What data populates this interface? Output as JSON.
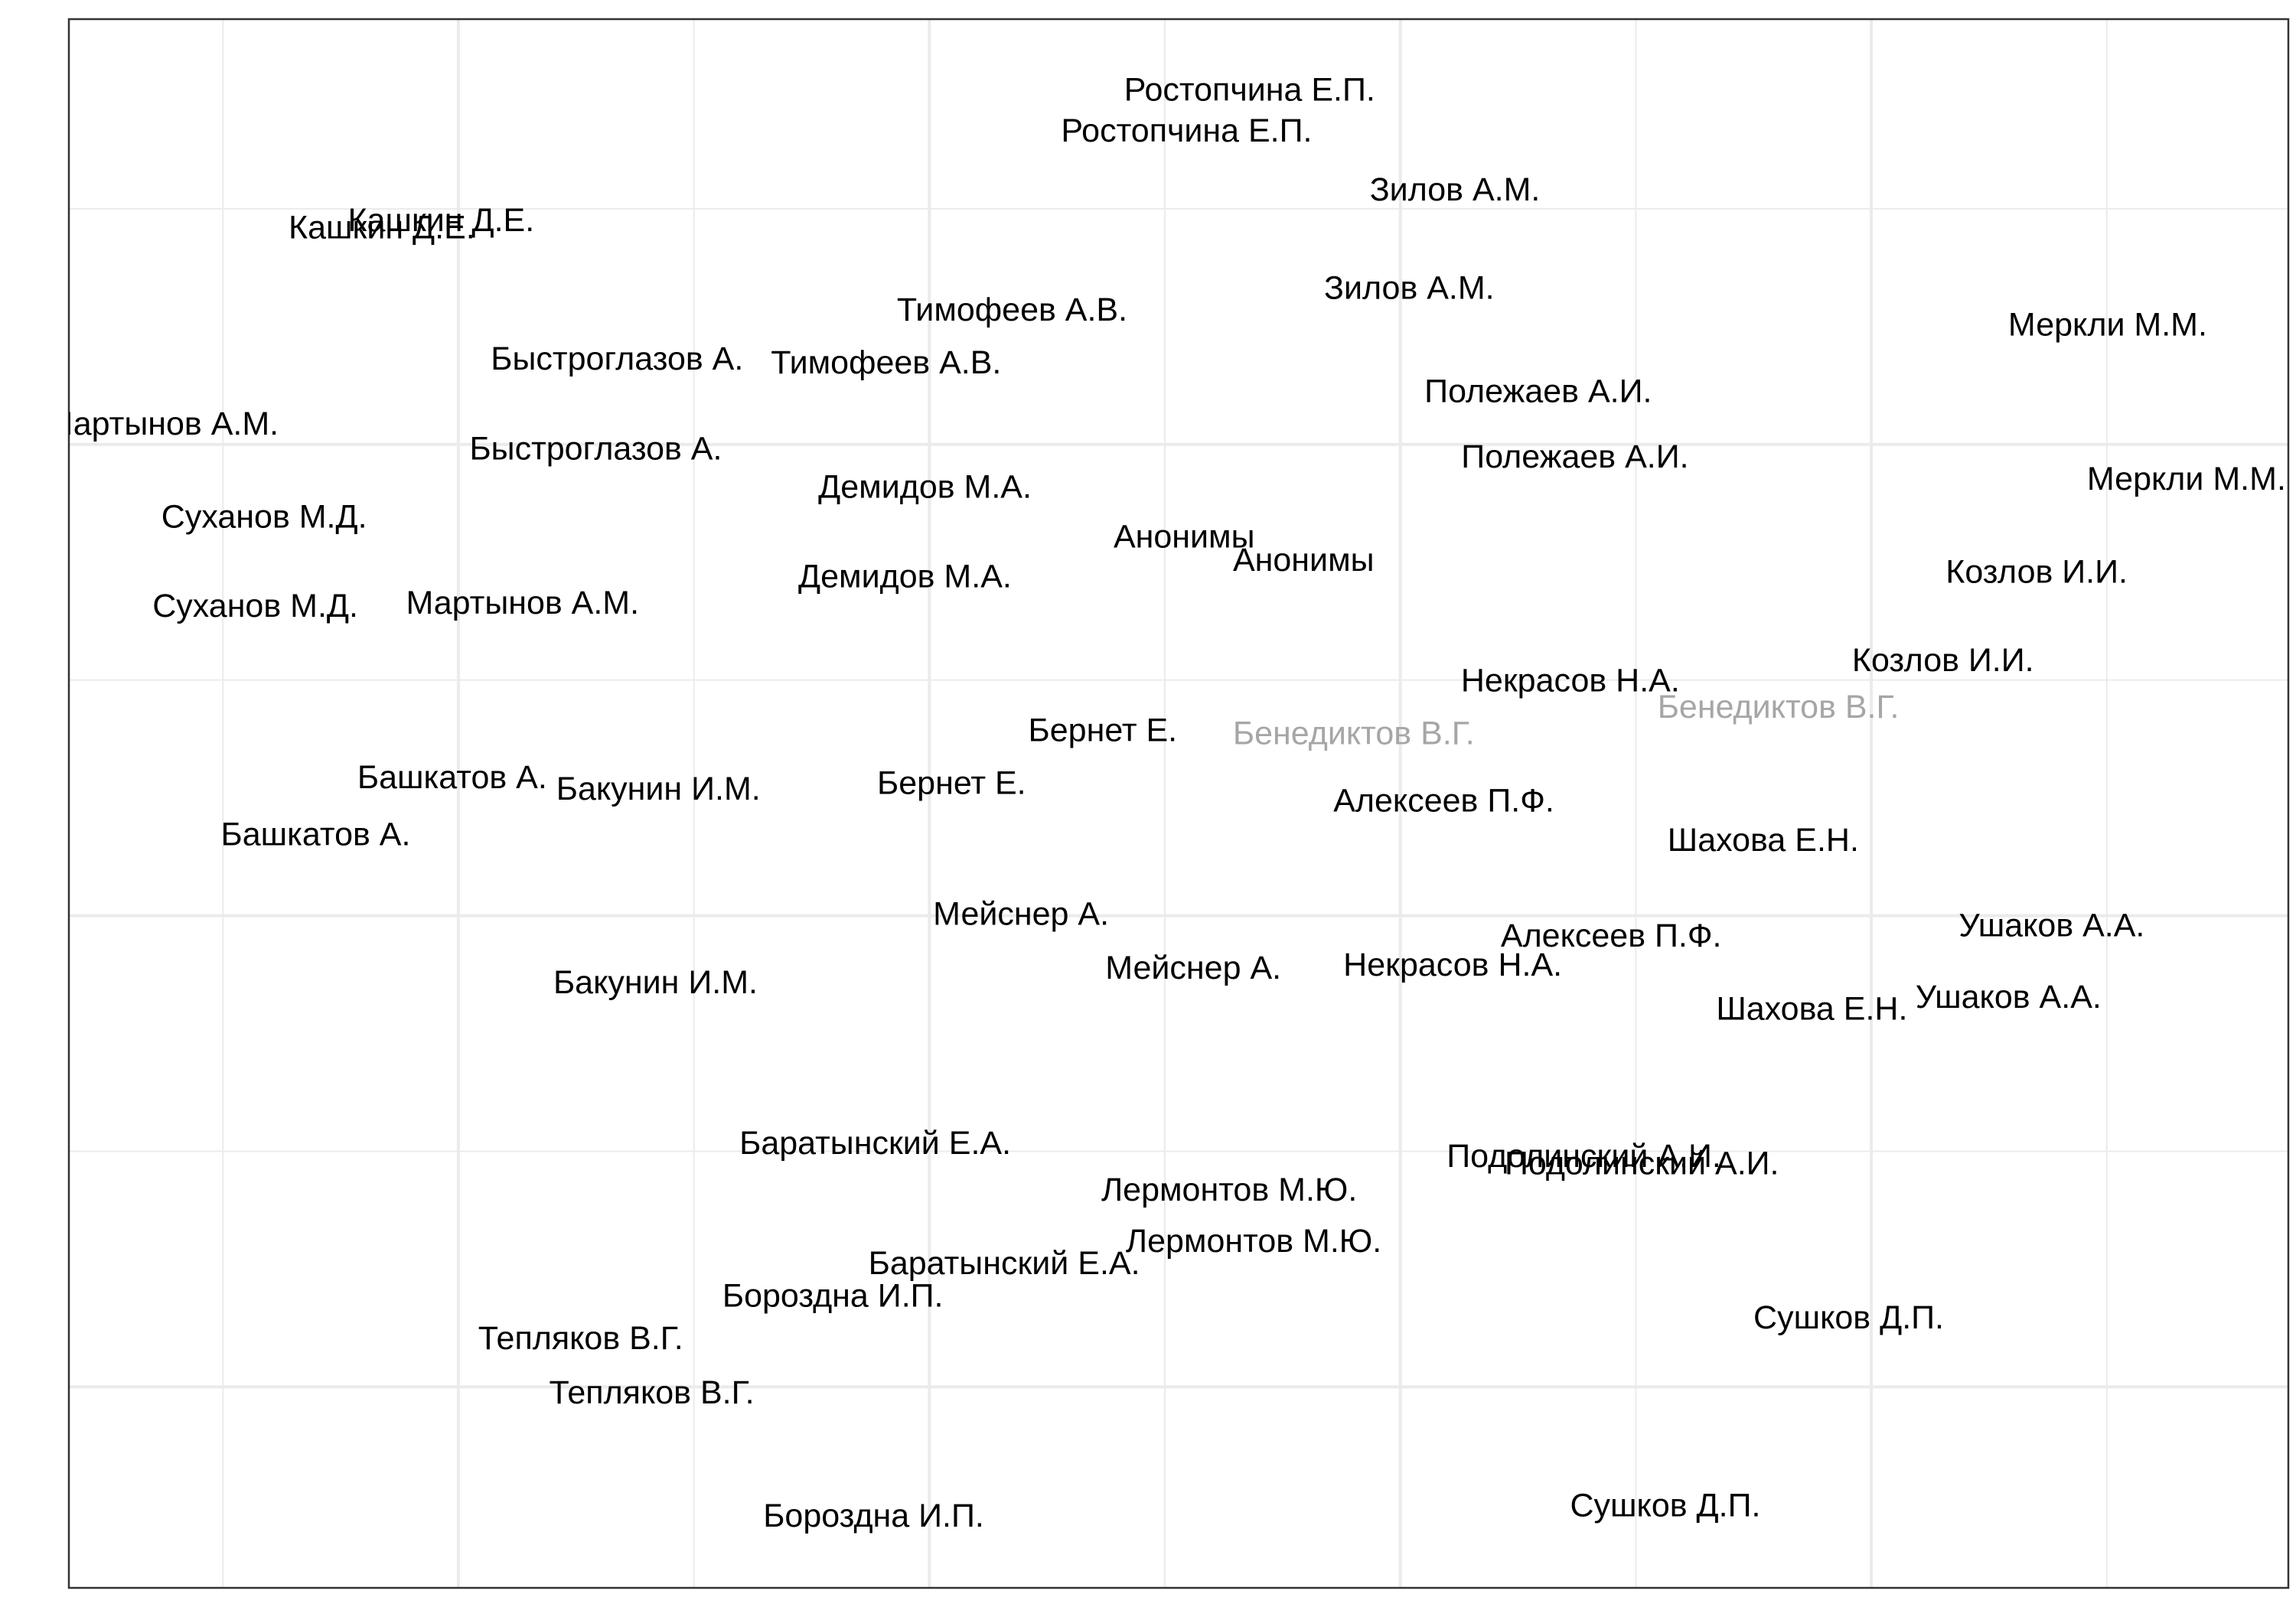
{
  "chart_data": {
    "type": "scatter",
    "title": "",
    "xlabel": "",
    "ylabel": "",
    "xlim": [
      0,
      1000
    ],
    "ylim": [
      0,
      1000
    ],
    "grid": true,
    "legend": "none",
    "colors": {
      "text": "#000000",
      "muted": "#a6a6a6",
      "grid": "#ebebeb",
      "border": "#333333"
    },
    "points": [
      {
        "label": "Ростопчина Е.П.",
        "x": 532.0,
        "y": 953.5,
        "color": "#000000"
      },
      {
        "label": "Ростопчина Е.П.",
        "x": 503.6,
        "y": 927.4,
        "color": "#000000"
      },
      {
        "label": "Зилов А.М.",
        "x": 624.5,
        "y": 890.0,
        "color": "#000000"
      },
      {
        "label": "Зилов А.М.",
        "x": 603.9,
        "y": 827.3,
        "color": "#000000"
      },
      {
        "label": "Кашкин Д.Е.",
        "x": 167.7,
        "y": 870.4,
        "color": "#000000"
      },
      {
        "label": "Кашкин Д.Е.",
        "x": 141.0,
        "y": 865.8,
        "color": "#000000"
      },
      {
        "label": "Тимофеев А.В.",
        "x": 425.0,
        "y": 813.4,
        "color": "#000000"
      },
      {
        "label": "Тимофеев А.В.",
        "x": 368.2,
        "y": 779.7,
        "color": "#000000"
      },
      {
        "label": "Меркли М.М.",
        "x": 918.6,
        "y": 803.9,
        "color": "#000000"
      },
      {
        "label": "Меркли М.М.",
        "x": 954.1,
        "y": 705.6,
        "color": "#000000"
      },
      {
        "label": "Быстроглазов А.",
        "x": 247.0,
        "y": 782.1,
        "color": "#000000"
      },
      {
        "label": "Быстроглазов А.",
        "x": 237.4,
        "y": 724.9,
        "color": "#000000"
      },
      {
        "label": "Мартынов А.М.",
        "x": 42.0,
        "y": 740.7,
        "color": "#000000"
      },
      {
        "label": "Мартынов А.М.",
        "x": 204.4,
        "y": 626.4,
        "color": "#000000"
      },
      {
        "label": "Полежаев А.И.",
        "x": 662.0,
        "y": 761.5,
        "color": "#000000"
      },
      {
        "label": "Полежаев А.И.",
        "x": 678.6,
        "y": 719.6,
        "color": "#000000"
      },
      {
        "label": "Суханов М.Д.",
        "x": 88.0,
        "y": 681.3,
        "color": "#000000"
      },
      {
        "label": "Суханов М.Д.",
        "x": 84.0,
        "y": 624.6,
        "color": "#000000"
      },
      {
        "label": "Демидов М.А.",
        "x": 385.7,
        "y": 700.5,
        "color": "#000000"
      },
      {
        "label": "Демидов М.А.",
        "x": 376.7,
        "y": 643.3,
        "color": "#000000"
      },
      {
        "label": "Анонимы",
        "x": 502.5,
        "y": 668.7,
        "color": "#000000"
      },
      {
        "label": "Анонимы",
        "x": 556.3,
        "y": 653.8,
        "color": "#000000"
      },
      {
        "label": "Козлов И.И.",
        "x": 886.6,
        "y": 646.3,
        "color": "#000000"
      },
      {
        "label": "Козлов И.И.",
        "x": 844.4,
        "y": 590.0,
        "color": "#000000"
      },
      {
        "label": "Некрасов Н.А.",
        "x": 676.5,
        "y": 577.0,
        "color": "#000000"
      },
      {
        "label": "Некрасов Н.А.",
        "x": 623.5,
        "y": 395.7,
        "color": "#000000"
      },
      {
        "label": "Бенедиктов В.Г.",
        "x": 770.2,
        "y": 560.2,
        "color": "#a6a6a6"
      },
      {
        "label": "Бенедиктов В.Г.",
        "x": 578.9,
        "y": 543.4,
        "color": "#a6a6a6"
      },
      {
        "label": "Бернет Е.",
        "x": 465.8,
        "y": 545.3,
        "color": "#000000"
      },
      {
        "label": "Бернет Е.",
        "x": 397.7,
        "y": 511.7,
        "color": "#000000"
      },
      {
        "label": "Башкатов А.",
        "x": 172.7,
        "y": 515.4,
        "color": "#000000"
      },
      {
        "label": "Башкатов А.",
        "x": 111.2,
        "y": 478.9,
        "color": "#000000"
      },
      {
        "label": "Бакунин И.М.",
        "x": 265.6,
        "y": 507.9,
        "color": "#000000"
      },
      {
        "label": "Бакунин И.М.",
        "x": 264.3,
        "y": 384.5,
        "color": "#000000"
      },
      {
        "label": "Алексеев П.Ф.",
        "x": 619.5,
        "y": 500.5,
        "color": "#000000"
      },
      {
        "label": "Алексеев П.Ф.",
        "x": 694.9,
        "y": 414.4,
        "color": "#000000"
      },
      {
        "label": "Шахова Е.Н.",
        "x": 763.4,
        "y": 475.2,
        "color": "#000000"
      },
      {
        "label": "Шахова Е.Н.",
        "x": 785.3,
        "y": 367.7,
        "color": "#000000"
      },
      {
        "label": "Ушаков А.А.",
        "x": 893.4,
        "y": 421.0,
        "color": "#000000"
      },
      {
        "label": "Ушаков А.А.",
        "x": 873.9,
        "y": 375.2,
        "color": "#000000"
      },
      {
        "label": "Мейснер А.",
        "x": 429.0,
        "y": 428.3,
        "color": "#000000"
      },
      {
        "label": "Мейснер А.",
        "x": 506.6,
        "y": 393.8,
        "color": "#000000"
      },
      {
        "label": "Баратынский Е.А.",
        "x": 363.3,
        "y": 282.2,
        "color": "#000000"
      },
      {
        "label": "Баратынский Е.А.",
        "x": 421.4,
        "y": 205.5,
        "color": "#000000"
      },
      {
        "label": "Лермонтов М.Ю.",
        "x": 522.8,
        "y": 252.3,
        "color": "#000000"
      },
      {
        "label": "Лермонтов М.Ю.",
        "x": 533.8,
        "y": 219.6,
        "color": "#000000"
      },
      {
        "label": "Подолинский А.И.",
        "x": 682.6,
        "y": 273.8,
        "color": "#000000"
      },
      {
        "label": "Подолинский А.И.",
        "x": 708.7,
        "y": 269.2,
        "color": "#000000"
      },
      {
        "label": "Бороздна И.П.",
        "x": 344.2,
        "y": 184.9,
        "color": "#000000"
      },
      {
        "label": "Бороздна И.П.",
        "x": 362.6,
        "y": 44.6,
        "color": "#000000"
      },
      {
        "label": "Тепляков В.Г.",
        "x": 230.6,
        "y": 157.8,
        "color": "#000000"
      },
      {
        "label": "Тепляков В.Г.",
        "x": 262.6,
        "y": 123.2,
        "color": "#000000"
      },
      {
        "label": "Сушков Д.П.",
        "x": 801.9,
        "y": 171.0,
        "color": "#000000"
      },
      {
        "label": "Сушков Д.П.",
        "x": 719.3,
        "y": 51.2,
        "color": "#000000"
      }
    ]
  }
}
